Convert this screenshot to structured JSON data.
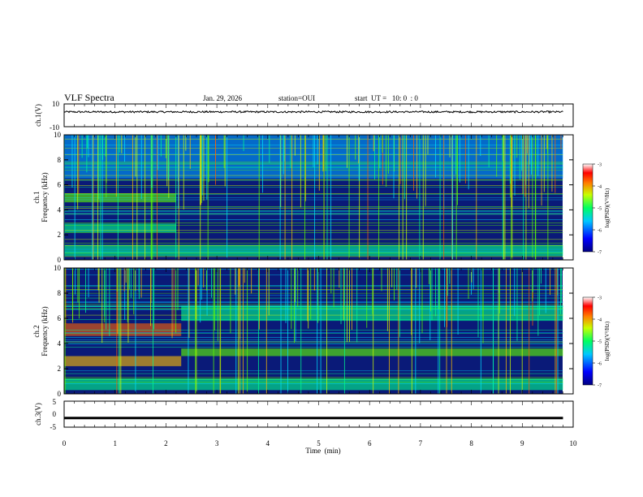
{
  "header": {
    "title": "VLF Spectra",
    "date": "Jan. 29, 2026",
    "station": "station=OUI",
    "start": "start  UT =   10: 0  : 0"
  },
  "colors": {
    "background": "#ffffff",
    "axis": "#000000",
    "spectrogram_base": "#0a1a78",
    "colormap": [
      "#7a007a",
      "#000080",
      "#0000ff",
      "#0080ff",
      "#00e0ff",
      "#00ff80",
      "#80ff00",
      "#ffff00",
      "#ff8000",
      "#ff0000",
      "#ffffff"
    ]
  },
  "chart_data": [
    {
      "type": "line",
      "panel": "ch1-waveform",
      "ylabel": "ch.1(V)",
      "ylim": [
        -10,
        10
      ],
      "yticks": [
        "10",
        "-10"
      ],
      "xlim": [
        0,
        10
      ],
      "series": [
        {
          "x": [
            0,
            10
          ],
          "y": [
            3,
            3
          ]
        }
      ],
      "description_level": 3
    },
    {
      "type": "heatmap",
      "panel": "ch1-spectrogram",
      "ylabel_line1": "ch.1",
      "ylabel_line2": "Frequency (kHz)",
      "ylim": [
        0,
        10
      ],
      "yticks": [
        "0",
        "2",
        "4",
        "6",
        "8",
        "10"
      ],
      "xlim": [
        0,
        10
      ],
      "data_end_min": 9.8,
      "colorbar": {
        "label": "log(PSD)(V²/Hz)",
        "range": [
          -7,
          -3
        ],
        "ticks": [
          "-3",
          "-4",
          "-5",
          "-6",
          "-7"
        ]
      },
      "bands": [
        {
          "f0": 4.6,
          "f1": 5.3,
          "t0": 0,
          "t1": 2.2,
          "level": 0.55
        },
        {
          "f0": 2.2,
          "f1": 2.9,
          "t0": 0,
          "t1": 2.2,
          "level": 0.45
        },
        {
          "f0": 0.3,
          "f1": 1.2,
          "t0": 0,
          "t1": 9.8,
          "level": 0.45
        },
        {
          "f0": 6.5,
          "f1": 10,
          "t0": 0,
          "t1": 9.8,
          "level": 0.3
        }
      ]
    },
    {
      "type": "heatmap",
      "panel": "ch2-spectrogram",
      "ylabel_line1": "ch.2",
      "ylabel_line2": "Frequency (kHz)",
      "ylim": [
        0,
        10
      ],
      "yticks": [
        "0",
        "2",
        "4",
        "6",
        "8",
        "10"
      ],
      "xlim": [
        0,
        10
      ],
      "data_end_min": 9.8,
      "colorbar": {
        "label": "log(PSD)(V²/Hz)",
        "range": [
          -7,
          -3
        ],
        "ticks": [
          "-3",
          "-4",
          "-5",
          "-6",
          "-7"
        ]
      },
      "bands": [
        {
          "f0": 4.6,
          "f1": 5.6,
          "t0": 0,
          "t1": 2.3,
          "level": 0.85
        },
        {
          "f0": 2.2,
          "f1": 3.0,
          "t0": 0,
          "t1": 2.3,
          "level": 0.75
        },
        {
          "f0": 3.0,
          "f1": 3.6,
          "t0": 2.3,
          "t1": 9.8,
          "level": 0.55
        },
        {
          "f0": 5.8,
          "f1": 7.0,
          "t0": 2.3,
          "t1": 9.8,
          "level": 0.5
        },
        {
          "f0": 0.3,
          "f1": 1.2,
          "t0": 0,
          "t1": 9.8,
          "level": 0.5
        }
      ]
    },
    {
      "type": "line",
      "panel": "ch3-waveform",
      "ylabel": "ch.3(V)",
      "ylim": [
        -5,
        5
      ],
      "yticks": [
        "5",
        "0",
        "-5"
      ],
      "xlim": [
        0,
        10
      ],
      "series": [
        {
          "x": [
            0,
            9.8
          ],
          "y": [
            -1.5,
            -1.5
          ]
        }
      ]
    }
  ],
  "xaxis": {
    "label": "Time  (min)",
    "ticks": [
      "0",
      "1",
      "2",
      "3",
      "4",
      "5",
      "6",
      "7",
      "8",
      "9",
      "10"
    ],
    "range": [
      0,
      10
    ]
  }
}
